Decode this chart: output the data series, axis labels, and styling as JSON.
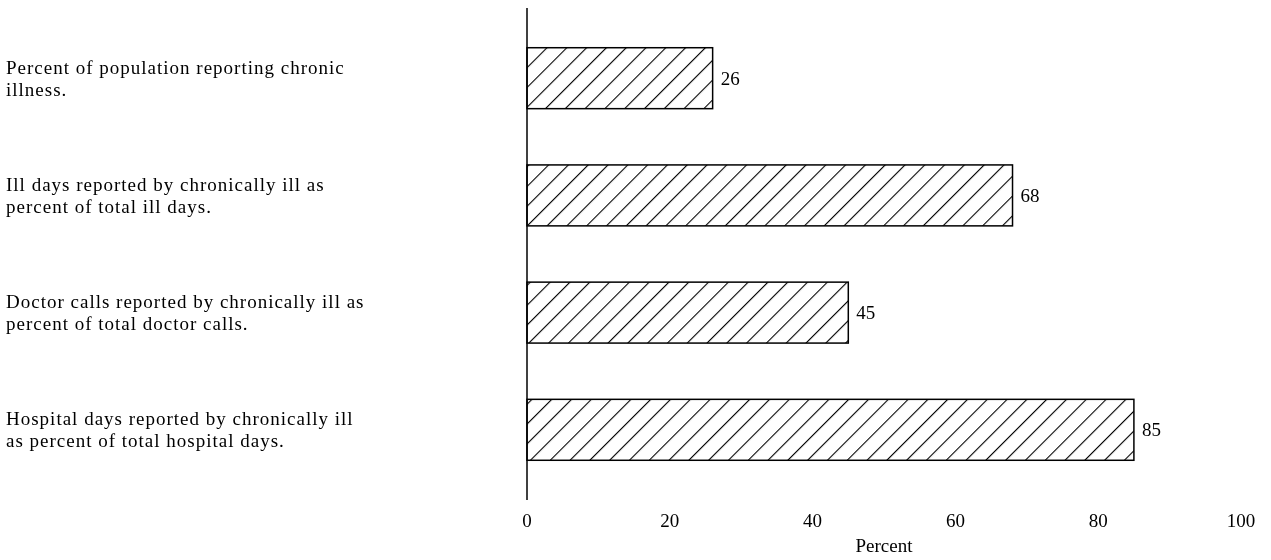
{
  "chart_data": {
    "type": "bar",
    "orientation": "horizontal",
    "xlabel": "Percent",
    "categories": [
      "Percent of population reporting chronic illness.",
      "Ill days reported by chronically ill as percent of total ill days.",
      "Doctor calls reported by chronically ill as percent of total doctor calls.",
      "Hospital days reported by chronically ill as percent of total hospital days."
    ],
    "values": [
      26,
      68,
      45,
      85
    ],
    "color": "#000000",
    "data_labels": true,
    "xlim": [
      0,
      100
    ],
    "xticks": [
      0,
      20,
      40,
      60,
      80,
      100
    ],
    "grid": false
  }
}
